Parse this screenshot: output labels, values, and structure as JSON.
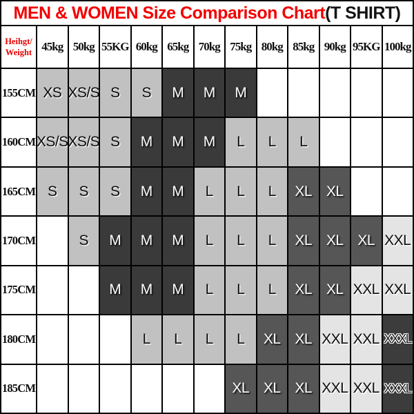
{
  "title": {
    "red_part": "MEN & WOMEN Size Comparison Chart",
    "black_part": "(T SHIRT)"
  },
  "colors": {
    "title_red": "#f20000",
    "header_red": "#e80000",
    "cell_light_gray": "#c1c1c1",
    "cell_dark_gray": "#3a3a3a",
    "cell_mid_gray": "#565656",
    "cell_extra_light_gray": "#e4e4e4",
    "cell_xxxl_gray": "#3c3c3c",
    "grid_line": "#000000"
  },
  "table": {
    "corner": {
      "line1": "Heihgt/",
      "line2": "Weight"
    },
    "weight_headers": [
      "45kg",
      "50kg",
      "55KG",
      "60kg",
      "65kg",
      "70kg",
      "75kg",
      "80kg",
      "85kg",
      "90kg",
      "95KG",
      "100kg"
    ],
    "rows": [
      {
        "label": "155CM",
        "cells": [
          {
            "t": "XS",
            "cls": "cell light"
          },
          {
            "t": "XS/S",
            "cls": "cell light"
          },
          {
            "t": "S",
            "cls": "cell light"
          },
          {
            "t": "S",
            "cls": "cell light"
          },
          {
            "t": "M",
            "cls": "cell dark"
          },
          {
            "t": "M",
            "cls": "cell dark"
          },
          {
            "t": "M",
            "cls": "cell dark"
          },
          {
            "t": "",
            "cls": "cell empty"
          },
          {
            "t": "",
            "cls": "cell empty"
          },
          {
            "t": "",
            "cls": "cell empty"
          },
          {
            "t": "",
            "cls": "cell empty"
          },
          {
            "t": "",
            "cls": "cell empty"
          }
        ]
      },
      {
        "label": "160CM",
        "cells": [
          {
            "t": "XS/S",
            "cls": "cell light"
          },
          {
            "t": "XS/S",
            "cls": "cell light"
          },
          {
            "t": "S",
            "cls": "cell light"
          },
          {
            "t": "M",
            "cls": "cell dark"
          },
          {
            "t": "M",
            "cls": "cell dark"
          },
          {
            "t": "M",
            "cls": "cell dark"
          },
          {
            "t": "L",
            "cls": "cell light"
          },
          {
            "t": "L",
            "cls": "cell light"
          },
          {
            "t": "L",
            "cls": "cell light"
          },
          {
            "t": "",
            "cls": "cell empty"
          },
          {
            "t": "",
            "cls": "cell empty"
          },
          {
            "t": "",
            "cls": "cell empty"
          }
        ]
      },
      {
        "label": "165CM",
        "cells": [
          {
            "t": "S",
            "cls": "cell light"
          },
          {
            "t": "S",
            "cls": "cell light"
          },
          {
            "t": "S",
            "cls": "cell light"
          },
          {
            "t": "M",
            "cls": "cell dark"
          },
          {
            "t": "M",
            "cls": "cell dark"
          },
          {
            "t": "L",
            "cls": "cell light"
          },
          {
            "t": "L",
            "cls": "cell light"
          },
          {
            "t": "L",
            "cls": "cell light"
          },
          {
            "t": "XL",
            "cls": "cell mid"
          },
          {
            "t": "XL",
            "cls": "cell mid"
          },
          {
            "t": "",
            "cls": "cell empty"
          },
          {
            "t": "",
            "cls": "cell empty"
          }
        ]
      },
      {
        "label": "170CM",
        "cells": [
          {
            "t": "",
            "cls": "cell empty"
          },
          {
            "t": "S",
            "cls": "cell light"
          },
          {
            "t": "M",
            "cls": "cell dark"
          },
          {
            "t": "M",
            "cls": "cell dark"
          },
          {
            "t": "M",
            "cls": "cell dark"
          },
          {
            "t": "L",
            "cls": "cell light"
          },
          {
            "t": "L",
            "cls": "cell light"
          },
          {
            "t": "L",
            "cls": "cell light"
          },
          {
            "t": "XL",
            "cls": "cell mid"
          },
          {
            "t": "XL",
            "cls": "cell mid"
          },
          {
            "t": "XL",
            "cls": "cell mid"
          },
          {
            "t": "XXL",
            "cls": "cell xlight"
          }
        ]
      },
      {
        "label": "175CM",
        "cells": [
          {
            "t": "",
            "cls": "cell empty"
          },
          {
            "t": "",
            "cls": "cell empty"
          },
          {
            "t": "M",
            "cls": "cell dark"
          },
          {
            "t": "M",
            "cls": "cell dark"
          },
          {
            "t": "M",
            "cls": "cell dark"
          },
          {
            "t": "L",
            "cls": "cell light"
          },
          {
            "t": "L",
            "cls": "cell light"
          },
          {
            "t": "L",
            "cls": "cell light"
          },
          {
            "t": "XL",
            "cls": "cell mid"
          },
          {
            "t": "XL",
            "cls": "cell mid"
          },
          {
            "t": "XXL",
            "cls": "cell xlight"
          },
          {
            "t": "XXL",
            "cls": "cell xlight"
          }
        ]
      },
      {
        "label": "180CM",
        "cells": [
          {
            "t": "",
            "cls": "cell empty"
          },
          {
            "t": "",
            "cls": "cell empty"
          },
          {
            "t": "",
            "cls": "cell empty"
          },
          {
            "t": "L",
            "cls": "cell light"
          },
          {
            "t": "L",
            "cls": "cell light"
          },
          {
            "t": "L",
            "cls": "cell light"
          },
          {
            "t": "L",
            "cls": "cell light"
          },
          {
            "t": "XL",
            "cls": "cell mid"
          },
          {
            "t": "XL",
            "cls": "cell mid"
          },
          {
            "t": "XXL",
            "cls": "cell xlight"
          },
          {
            "t": "XXL",
            "cls": "cell xlight"
          },
          {
            "t": "XXXL",
            "cls": "cell xxxl"
          }
        ]
      },
      {
        "label": "185CM",
        "cells": [
          {
            "t": "",
            "cls": "cell empty"
          },
          {
            "t": "",
            "cls": "cell empty"
          },
          {
            "t": "",
            "cls": "cell empty"
          },
          {
            "t": "",
            "cls": "cell empty"
          },
          {
            "t": "",
            "cls": "cell empty"
          },
          {
            "t": "",
            "cls": "cell empty"
          },
          {
            "t": "XL",
            "cls": "cell mid"
          },
          {
            "t": "XL",
            "cls": "cell mid"
          },
          {
            "t": "XL",
            "cls": "cell mid"
          },
          {
            "t": "XXL",
            "cls": "cell xlight"
          },
          {
            "t": "XXL",
            "cls": "cell xlight"
          },
          {
            "t": "XXXL",
            "cls": "cell xxxl"
          }
        ]
      }
    ]
  },
  "chart_data": {
    "type": "table",
    "title": "MEN & WOMEN Size Comparison Chart(T SHIRT)",
    "corner_label": "Heihgt/Weight",
    "columns": [
      "45kg",
      "50kg",
      "55KG",
      "60kg",
      "65kg",
      "70kg",
      "75kg",
      "80kg",
      "85kg",
      "90kg",
      "95KG",
      "100kg"
    ],
    "row_labels": [
      "155CM",
      "160CM",
      "165CM",
      "170CM",
      "175CM",
      "180CM",
      "185CM"
    ],
    "matrix": [
      [
        "XS",
        "XS/S",
        "S",
        "S",
        "M",
        "M",
        "M",
        null,
        null,
        null,
        null,
        null
      ],
      [
        "XS/S",
        "XS/S",
        "S",
        "M",
        "M",
        "M",
        "L",
        "L",
        "L",
        null,
        null,
        null
      ],
      [
        "S",
        "S",
        "S",
        "M",
        "M",
        "L",
        "L",
        "L",
        "XL",
        "XL",
        null,
        null
      ],
      [
        null,
        "S",
        "M",
        "M",
        "M",
        "L",
        "L",
        "L",
        "XL",
        "XL",
        "XL",
        "XXL"
      ],
      [
        null,
        null,
        "M",
        "M",
        "M",
        "L",
        "L",
        "L",
        "XL",
        "XL",
        "XXL",
        "XXL"
      ],
      [
        null,
        null,
        null,
        "L",
        "L",
        "L",
        "L",
        "XL",
        "XL",
        "XXL",
        "XXL",
        "XXXL"
      ],
      [
        null,
        null,
        null,
        null,
        null,
        null,
        "XL",
        "XL",
        "XL",
        "XXL",
        "XXL",
        "XXXL"
      ]
    ]
  }
}
